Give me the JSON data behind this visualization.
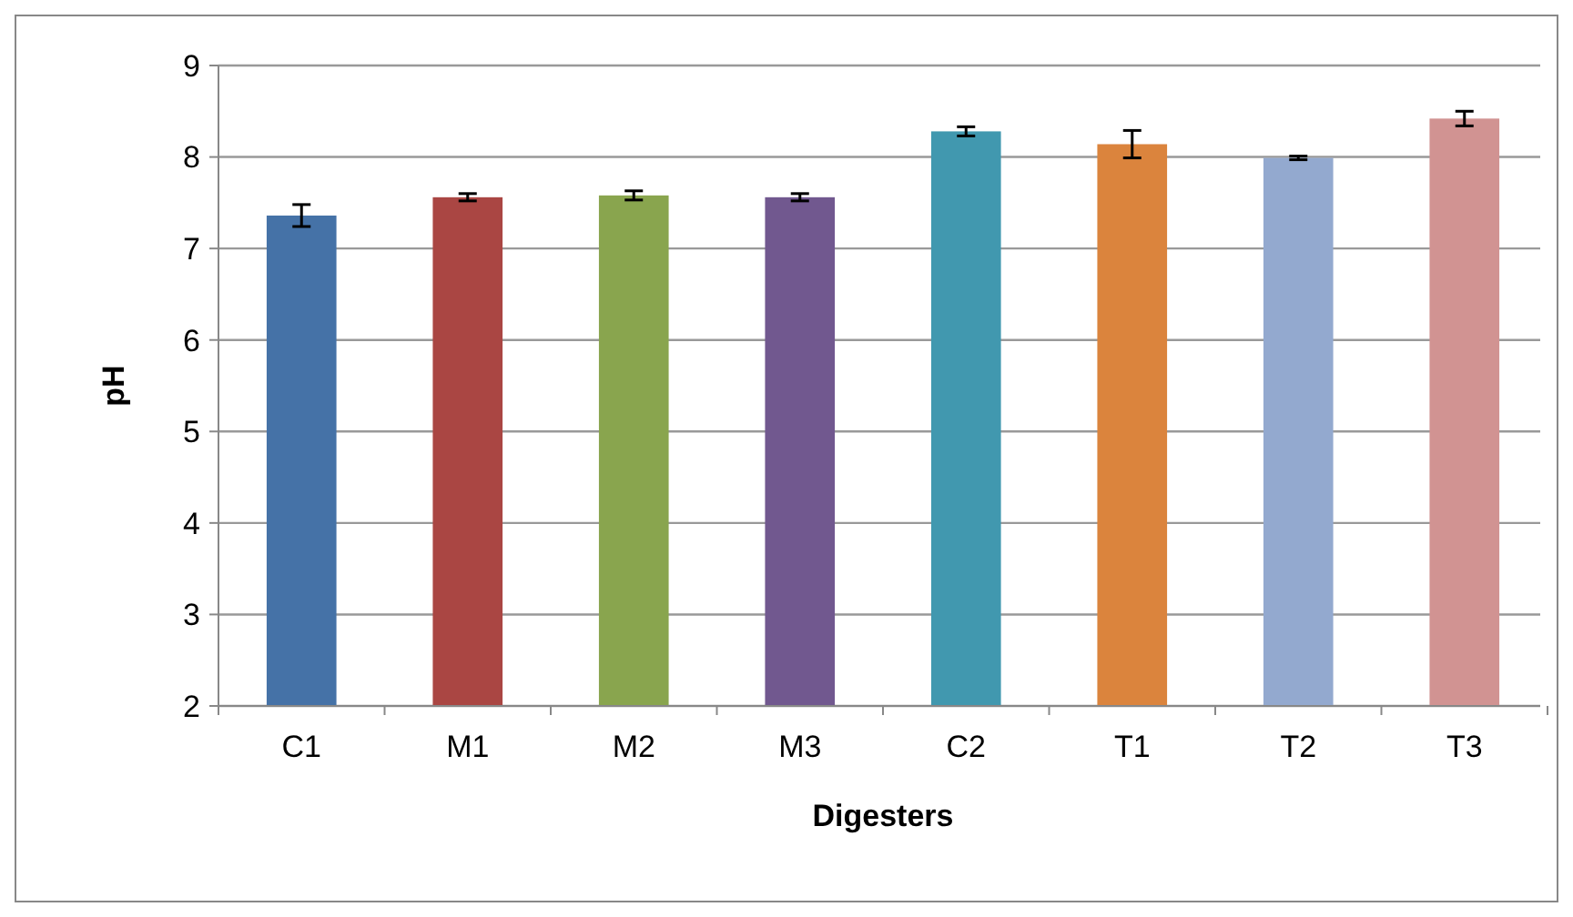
{
  "chart_data": {
    "type": "bar",
    "xlabel": "Digesters",
    "ylabel": "pH",
    "categories": [
      "C1",
      "M1",
      "M2",
      "M3",
      "C2",
      "T1",
      "T2",
      "T3"
    ],
    "values": [
      7.36,
      7.56,
      7.58,
      7.56,
      8.28,
      8.14,
      7.99,
      8.42
    ],
    "errors": [
      0.12,
      0.04,
      0.05,
      0.04,
      0.05,
      0.15,
      0.02,
      0.08
    ],
    "colors": [
      "#4572a7",
      "#aa4643",
      "#89a54e",
      "#71588f",
      "#4198af",
      "#db843d",
      "#93a9cf",
      "#d19392"
    ],
    "ylim": [
      2,
      9
    ],
    "yticks": [
      2,
      3,
      4,
      5,
      6,
      7,
      8,
      9
    ],
    "grid": "y"
  }
}
